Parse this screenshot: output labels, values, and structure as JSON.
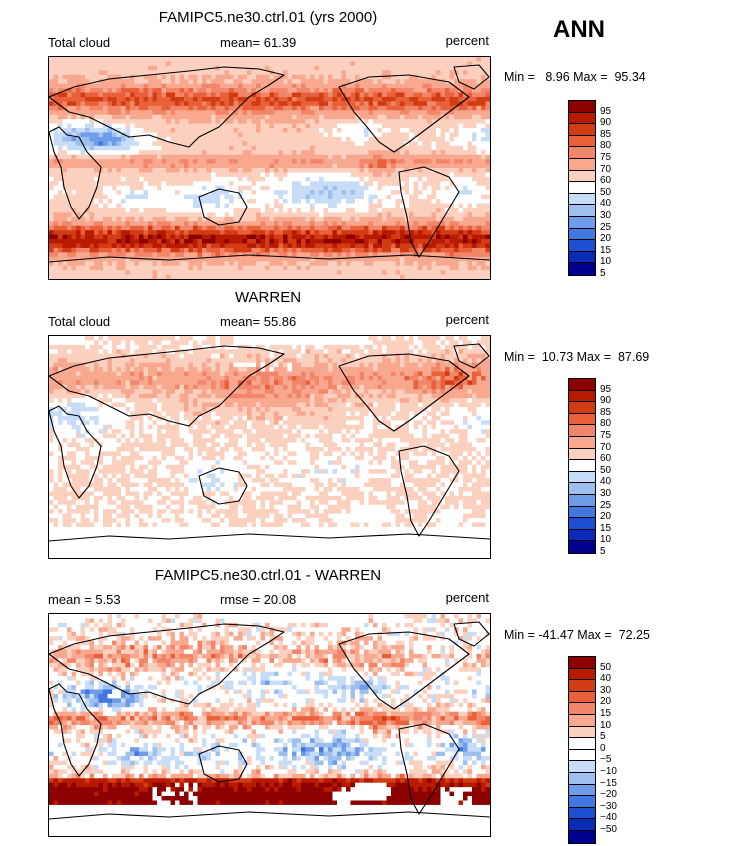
{
  "season": "ANN",
  "units": "percent",
  "panels": [
    {
      "title": "FAMIPC5.ne30.ctrl.01 (yrs 2000)",
      "left_label": "Total cloud",
      "mid_label": "mean=  61.39",
      "right_label": "percent",
      "minmax": "Min =   8.96 Max =  95.34",
      "levels": [
        "95",
        "90",
        "85",
        "80",
        "75",
        "70",
        "60",
        "50",
        "40",
        "30",
        "25",
        "20",
        "15",
        "10",
        "5"
      ],
      "colors": [
        "#8c0000",
        "#b81a00",
        "#d23c12",
        "#e8613a",
        "#f2866a",
        "#f7a88f",
        "#fbd0bf",
        "#ffffff",
        "#c7dcf6",
        "#9dc0f0",
        "#6f9ce8",
        "#4276e0",
        "#1d4fd2",
        "#0a2ab8",
        "#000090"
      ],
      "field": "control"
    },
    {
      "title": "WARREN",
      "left_label": "Total cloud",
      "mid_label": "mean=  55.86",
      "right_label": "percent",
      "minmax": "Min =  10.73 Max =  87.69",
      "levels": [
        "95",
        "90",
        "85",
        "80",
        "75",
        "70",
        "60",
        "50",
        "40",
        "30",
        "25",
        "20",
        "15",
        "10",
        "5"
      ],
      "colors": [
        "#8c0000",
        "#b81a00",
        "#d23c12",
        "#e8613a",
        "#f2866a",
        "#f7a88f",
        "#fbd0bf",
        "#ffffff",
        "#c7dcf6",
        "#9dc0f0",
        "#6f9ce8",
        "#4276e0",
        "#1d4fd2",
        "#0a2ab8",
        "#000090"
      ],
      "field": "observed"
    },
    {
      "title": "FAMIPC5.ne30.ctrl.01 - WARREN",
      "left_label": "mean =    5.53",
      "mid_label": "rmse =  20.08",
      "right_label": "percent",
      "minmax": "Min = -41.47 Max =  72.25",
      "levels": [
        "50",
        "40",
        "30",
        "20",
        "15",
        "10",
        "5",
        "0",
        "−5",
        "−10",
        "−15",
        "−20",
        "−30",
        "−40",
        "−50"
      ],
      "colors": [
        "#8c0000",
        "#b81a00",
        "#d23c12",
        "#e8613a",
        "#f2866a",
        "#f7a88f",
        "#fbd0bf",
        "#ffffff",
        "#ffffff",
        "#c7dcf6",
        "#9dc0f0",
        "#6f9ce8",
        "#4276e0",
        "#1d4fd2",
        "#0a2ab8",
        "#000090"
      ],
      "field": "difference"
    }
  ]
}
